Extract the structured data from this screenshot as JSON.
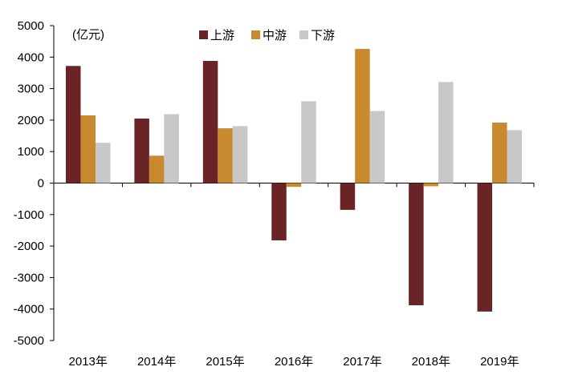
{
  "chart_data": {
    "type": "bar",
    "unit_label": "(亿元)",
    "categories": [
      "2013年",
      "2014年",
      "2015年",
      "2016年",
      "2017年",
      "2018年",
      "2019年"
    ],
    "series": [
      {
        "name": "上游",
        "color": "#6b2426",
        "values": [
          3720,
          2050,
          3880,
          -1820,
          -850,
          -3880,
          -4080
        ]
      },
      {
        "name": "中游",
        "color": "#c8892f",
        "values": [
          2150,
          870,
          1740,
          -120,
          4260,
          -100,
          1920
        ]
      },
      {
        "name": "下游",
        "color": "#c8c8c8",
        "values": [
          1280,
          2190,
          1810,
          2600,
          2290,
          3210,
          1680
        ]
      }
    ],
    "ylim": [
      -5000,
      5000
    ],
    "yticks": [
      5000,
      4000,
      3000,
      2000,
      1000,
      0,
      -1000,
      -2000,
      -3000,
      -4000,
      -5000
    ],
    "legend_position": "top",
    "grid": false
  }
}
